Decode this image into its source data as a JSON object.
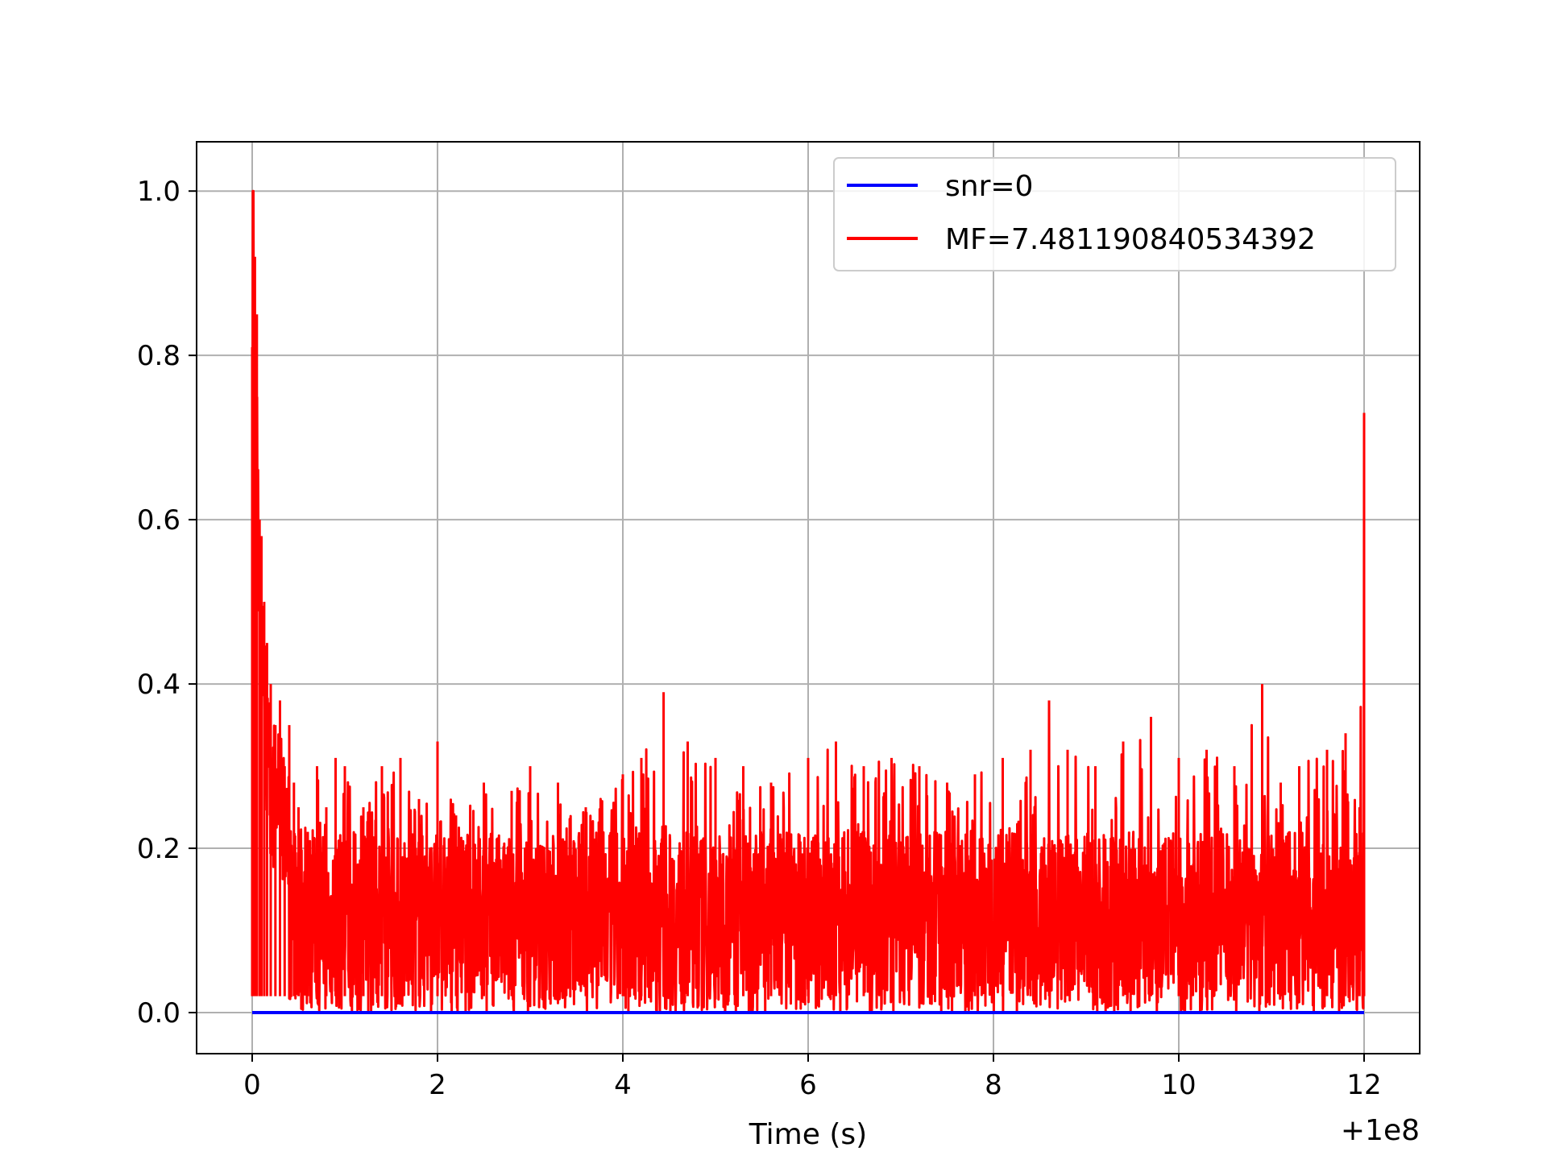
{
  "chart_data": {
    "type": "line",
    "title": "",
    "xlabel": "Time (s)",
    "ylabel": "",
    "x_offset_label": "+1e8",
    "xlim": [
      -0.6,
      12.6
    ],
    "ylim": [
      -0.05,
      1.06
    ],
    "x_ticks": [
      0,
      2,
      4,
      6,
      8,
      10,
      12
    ],
    "x_tick_labels": [
      "0",
      "2",
      "4",
      "6",
      "8",
      "10",
      "12"
    ],
    "y_ticks": [
      0.0,
      0.2,
      0.4,
      0.6,
      0.8,
      1.0
    ],
    "y_tick_labels": [
      "0.0",
      "0.2",
      "0.4",
      "0.6",
      "0.8",
      "1.0"
    ],
    "grid": true,
    "legend_position": "top-right",
    "series": [
      {
        "name": "snr=0",
        "color": "#0000ff",
        "x": [
          0,
          12
        ],
        "y": [
          0,
          0
        ]
      },
      {
        "name": "MF=7.481190840534392",
        "color": "#ff0000",
        "x": [
          0,
          0.01,
          0.03,
          0.05,
          0.08,
          0.1,
          0.13,
          0.16,
          0.2,
          0.25,
          0.3,
          0.35,
          0.4,
          0.45,
          0.5,
          0.6,
          0.7,
          0.8,
          0.9,
          1.0,
          1.2,
          1.4,
          1.6,
          1.8,
          2.0,
          2.2,
          2.5,
          2.8,
          3.0,
          3.3,
          3.6,
          4.0,
          4.2,
          4.44,
          4.7,
          5.0,
          5.3,
          5.6,
          6.0,
          6.3,
          6.6,
          6.9,
          7.2,
          7.5,
          7.8,
          8.1,
          8.4,
          8.6,
          8.8,
          9.1,
          9.4,
          9.7,
          10.0,
          10.3,
          10.6,
          10.9,
          11.1,
          11.3,
          11.6,
          11.8,
          11.95,
          12.0
        ],
        "y": [
          0.81,
          1.0,
          0.92,
          0.85,
          0.6,
          0.58,
          0.5,
          0.45,
          0.4,
          0.35,
          0.38,
          0.3,
          0.35,
          0.28,
          0.25,
          0.22,
          0.3,
          0.25,
          0.31,
          0.3,
          0.25,
          0.3,
          0.31,
          0.26,
          0.33,
          0.24,
          0.28,
          0.27,
          0.3,
          0.28,
          0.25,
          0.29,
          0.31,
          0.39,
          0.33,
          0.31,
          0.3,
          0.28,
          0.31,
          0.33,
          0.3,
          0.31,
          0.3,
          0.28,
          0.29,
          0.31,
          0.32,
          0.38,
          0.32,
          0.3,
          0.33,
          0.36,
          0.31,
          0.32,
          0.3,
          0.4,
          0.28,
          0.3,
          0.32,
          0.34,
          0.25,
          0.73
        ],
        "min_envelope": 0.0,
        "typical_band": [
          0.02,
          0.22
        ]
      }
    ]
  }
}
